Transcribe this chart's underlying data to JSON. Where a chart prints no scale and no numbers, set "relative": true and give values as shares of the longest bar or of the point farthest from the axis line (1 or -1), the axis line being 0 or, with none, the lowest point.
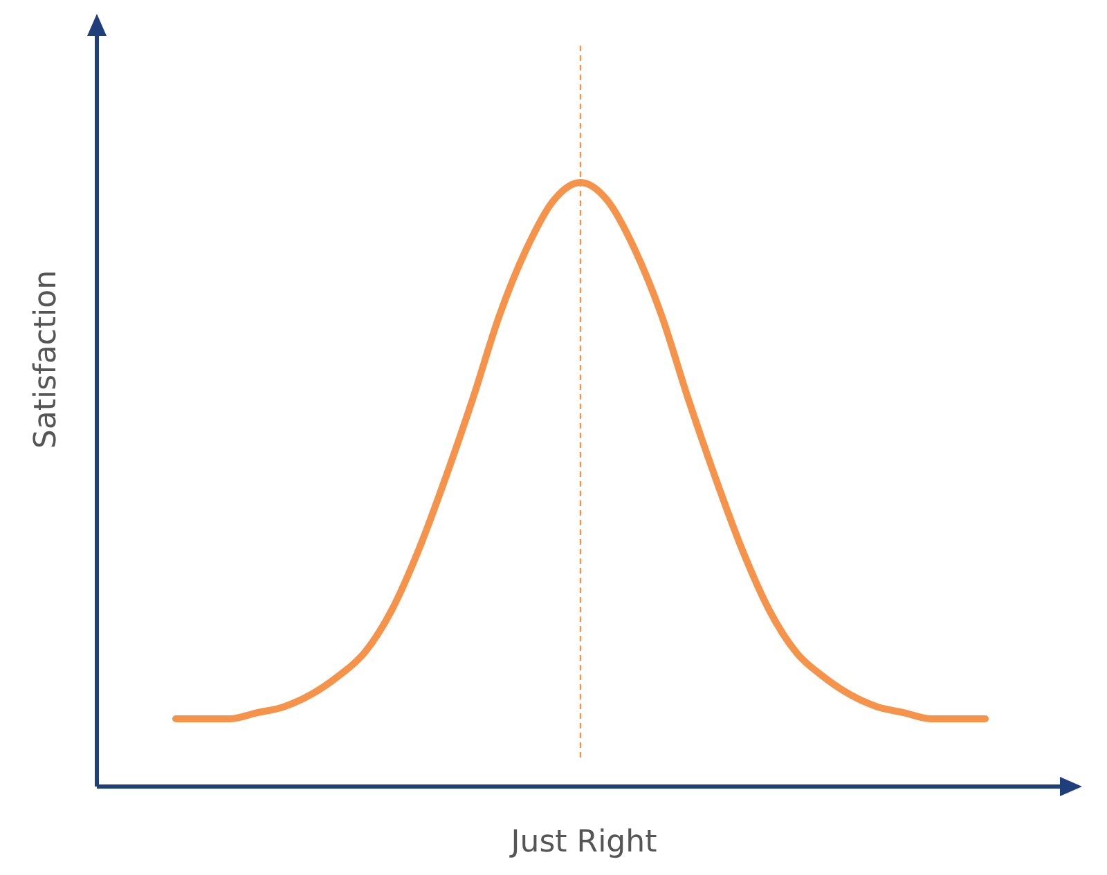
{
  "chart_data": {
    "type": "line",
    "relative": true,
    "xlabel": "Just Right",
    "ylabel": "Satisfaction",
    "categories": [
      null,
      null,
      null,
      null,
      null,
      null,
      null,
      null,
      null,
      null,
      null,
      null,
      null,
      null,
      null,
      null,
      null,
      null,
      null,
      null,
      null,
      null,
      null,
      null,
      null,
      null,
      null,
      null,
      null,
      null,
      null
    ],
    "series": [
      {
        "color": "#f5934a",
        "values": [
          0.11,
          0.11,
          0.11,
          0.12,
          0.13,
          0.15,
          0.18,
          0.22,
          0.29,
          0.39,
          0.51,
          0.64,
          0.78,
          0.89,
          0.97,
          1.0,
          0.97,
          0.89,
          0.78,
          0.64,
          0.51,
          0.39,
          0.29,
          0.22,
          0.18,
          0.15,
          0.13,
          0.12,
          0.11,
          0.11,
          0.11
        ]
      }
    ],
    "marker": "none",
    "line_style": "solid"
  }
}
